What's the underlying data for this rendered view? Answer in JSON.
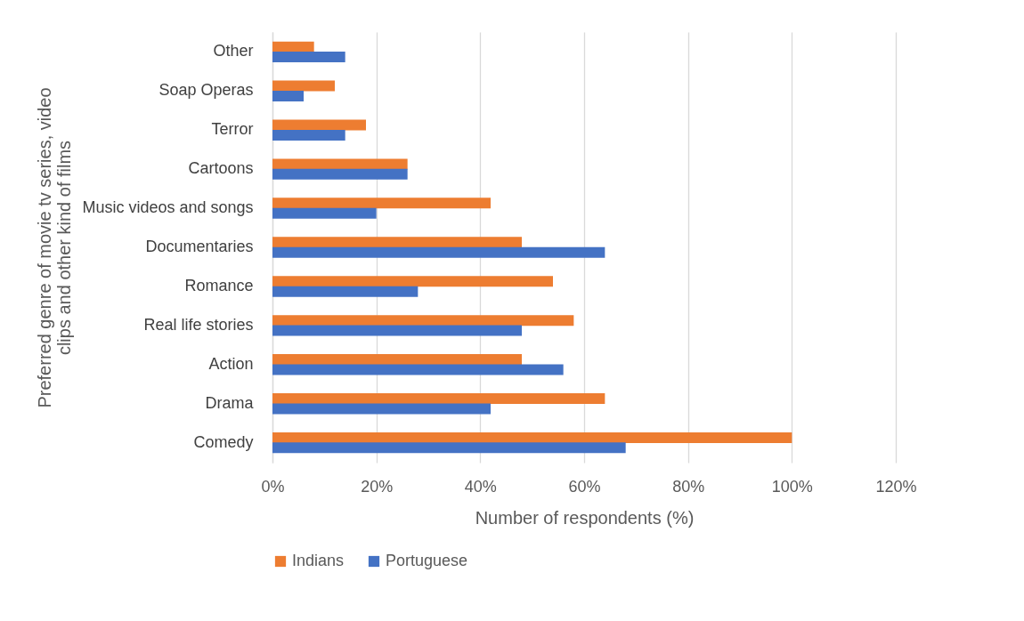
{
  "chart_data": {
    "type": "bar",
    "orientation": "horizontal",
    "categories": [
      "Other",
      "Soap Operas",
      "Terror",
      "Cartoons",
      "Music videos and songs",
      "Documentaries",
      "Romance",
      "Real life stories",
      "Action",
      "Drama",
      "Comedy"
    ],
    "series": [
      {
        "name": "Indians",
        "color": "#ed7d31",
        "values": [
          8,
          12,
          18,
          26,
          42,
          48,
          54,
          58,
          48,
          64,
          100
        ]
      },
      {
        "name": "Portuguese",
        "color": "#4472c4",
        "values": [
          14,
          6,
          14,
          26,
          20,
          64,
          28,
          48,
          56,
          42,
          68
        ]
      }
    ],
    "xlabel": "Number of respondents (%)",
    "ylabel": "Preferred genre of movie tv series, video clips and other kind of films",
    "xlim": [
      0,
      120
    ],
    "xticks": [
      {
        "value": 0,
        "label": "0%"
      },
      {
        "value": 20,
        "label": "20%"
      },
      {
        "value": 40,
        "label": "40%"
      },
      {
        "value": 60,
        "label": "60%"
      },
      {
        "value": 80,
        "label": "80%"
      },
      {
        "value": 100,
        "label": "100%"
      },
      {
        "value": 120,
        "label": "120%"
      }
    ],
    "grid": "x",
    "legend": "bottom"
  }
}
